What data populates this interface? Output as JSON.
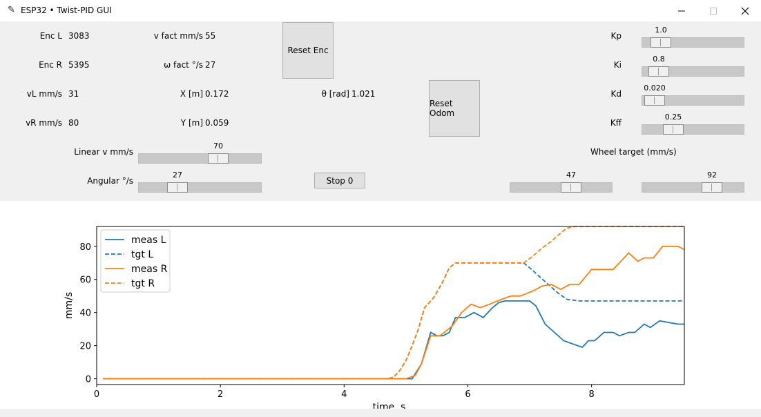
{
  "window": {
    "title": "ESP32 • Twist-PID GUI"
  },
  "readouts": {
    "enc_l": {
      "label": "Enc L",
      "value": "3083"
    },
    "enc_r": {
      "label": "Enc R",
      "value": "5395"
    },
    "vl": {
      "label": "vL mm/s",
      "value": "31"
    },
    "vr": {
      "label": "vR mm/s",
      "value": "80"
    },
    "v_fact": {
      "label": "v fact mm/s",
      "value": "55"
    },
    "w_fact": {
      "label": "ω fact °/s",
      "value": "27"
    },
    "x": {
      "label": "X [m]",
      "value": "0.172"
    },
    "y": {
      "label": "Y [m]",
      "value": "0.059"
    },
    "theta": {
      "label": "θ [rad]",
      "value": "1.021"
    }
  },
  "buttons": {
    "reset_enc": "Reset Enc",
    "reset_odom": "Reset Odom",
    "stop": "Stop 0"
  },
  "gains": {
    "kp": {
      "label": "Kp",
      "value": "1.0"
    },
    "ki": {
      "label": "Ki",
      "value": "0.8"
    },
    "kd": {
      "label": "Kd",
      "value": "0.020"
    },
    "kff": {
      "label": "Kff",
      "value": "0.25"
    }
  },
  "controls": {
    "linear": {
      "label": "Linear v mm/s",
      "value": "70"
    },
    "angular": {
      "label": "Angular °/s",
      "value": "27"
    },
    "wheel_target_label": "Wheel target (mm/s)",
    "wheel_l": {
      "value": "47"
    },
    "wheel_r": {
      "value": "92"
    }
  },
  "colors": {
    "blue": "#1f77b4",
    "orange": "#ff7f0e"
  },
  "chart_data": {
    "type": "line",
    "xlabel": "time, s",
    "ylabel": "mm/s",
    "xlim": [
      0,
      9.5
    ],
    "ylim": [
      -3.5,
      92
    ],
    "xticks": [
      0,
      2,
      4,
      6,
      8
    ],
    "yticks": [
      0,
      20,
      40,
      60,
      80
    ],
    "legend_position": "top-left",
    "series": [
      {
        "name": "meas L",
        "style": "solid",
        "color": "#1f77b4",
        "x": [
          0.1,
          4.8,
          5.1,
          5.25,
          5.4,
          5.5,
          5.6,
          5.7,
          5.8,
          5.95,
          6.1,
          6.25,
          6.4,
          6.5,
          6.6,
          6.75,
          6.9,
          7.0,
          7.1,
          7.25,
          7.4,
          7.55,
          7.7,
          7.85,
          7.95,
          8.05,
          8.2,
          8.35,
          8.45,
          8.6,
          8.7,
          8.85,
          8.95,
          9.1,
          9.25,
          9.4,
          9.5
        ],
        "y": [
          0,
          0,
          0,
          9,
          28,
          26,
          26,
          28,
          37,
          37,
          40,
          37,
          43,
          46,
          47,
          47,
          47,
          47,
          44,
          33,
          28,
          23,
          21,
          19,
          23,
          23,
          28,
          28,
          26,
          28,
          28,
          33,
          31,
          35,
          34,
          33,
          33
        ]
      },
      {
        "name": "tgt  L",
        "style": "dashed",
        "color": "#1f77b4",
        "x": [
          0.1,
          4.7,
          4.8,
          4.9,
          5.0,
          5.1,
          5.2,
          5.3,
          5.45,
          5.6,
          5.7,
          5.8,
          6.0,
          6.9,
          7.0,
          7.15,
          7.3,
          7.45,
          7.6,
          7.8,
          9.5
        ],
        "y": [
          0,
          0,
          1,
          5,
          11,
          20,
          30,
          43,
          49,
          59,
          67,
          70,
          70,
          70,
          67,
          62,
          57,
          52,
          48,
          47,
          47
        ]
      },
      {
        "name": "meas R",
        "style": "solid",
        "color": "#ff7f0e",
        "x": [
          0.1,
          4.8,
          5.0,
          5.15,
          5.25,
          5.4,
          5.55,
          5.75,
          5.9,
          6.05,
          6.2,
          6.35,
          6.55,
          6.7,
          6.85,
          7.05,
          7.2,
          7.35,
          7.5,
          7.65,
          7.8,
          8.0,
          8.15,
          8.35,
          8.45,
          8.6,
          8.75,
          8.85,
          9.0,
          9.15,
          9.3,
          9.4,
          9.5
        ],
        "y": [
          0,
          0,
          0,
          2,
          9,
          26,
          26,
          32,
          40,
          45,
          43,
          45,
          48,
          50,
          50,
          53,
          56,
          57,
          54,
          57,
          57,
          66,
          66,
          66,
          70,
          76,
          71,
          73,
          73,
          80,
          80,
          80,
          78
        ]
      },
      {
        "name": "tgt  R",
        "style": "dashed",
        "color": "#ff7f0e",
        "x": [
          0.1,
          4.7,
          4.8,
          4.9,
          5.0,
          5.1,
          5.2,
          5.3,
          5.45,
          5.6,
          5.7,
          5.8,
          6.0,
          6.9,
          7.05,
          7.2,
          7.35,
          7.5,
          7.6,
          7.75,
          9.5
        ],
        "y": [
          0,
          0,
          1,
          5,
          11,
          20,
          30,
          43,
          49,
          59,
          67,
          70,
          70,
          70,
          74,
          79,
          83,
          88,
          91,
          92,
          92
        ]
      }
    ]
  }
}
